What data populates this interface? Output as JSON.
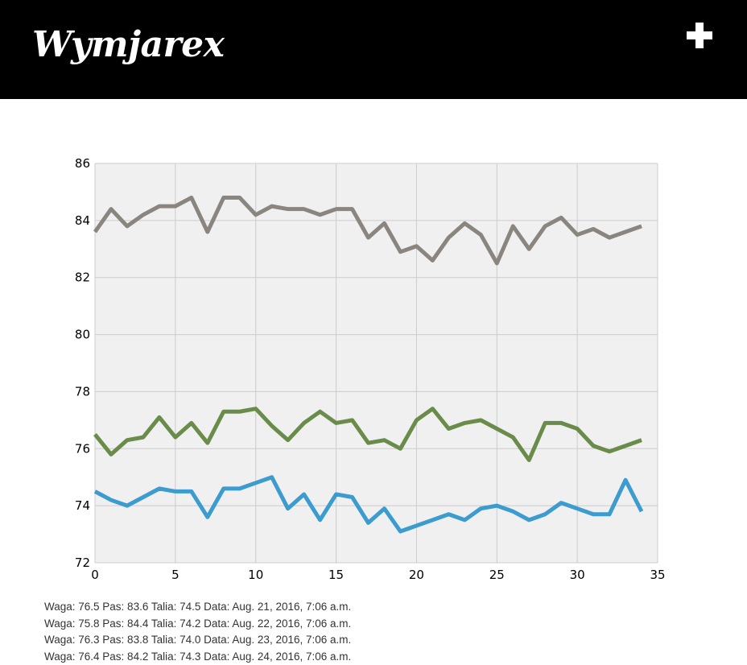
{
  "header": {
    "brand": "Wymjarex",
    "add_icon": "plus-icon",
    "background": "#000000"
  },
  "chart_data": {
    "type": "line",
    "title": "",
    "xlabel": "",
    "ylabel": "",
    "xlim": [
      0,
      35
    ],
    "ylim": [
      72,
      86
    ],
    "x_ticks": [
      "0",
      "5",
      "10",
      "15",
      "20",
      "25",
      "30",
      "35"
    ],
    "y_ticks": [
      "72",
      "74",
      "76",
      "78",
      "80",
      "82",
      "84",
      "86"
    ],
    "grid": true,
    "background": "#f0f0f0",
    "series": [
      {
        "color": "#8b8580",
        "values": [
          83.6,
          84.4,
          83.8,
          84.2,
          84.5,
          84.5,
          84.8,
          83.6,
          84.8,
          84.8,
          84.2,
          84.5,
          84.4,
          84.4,
          84.2,
          84.4,
          84.4,
          83.4,
          83.9,
          82.9,
          83.1,
          82.6,
          83.4,
          83.9,
          83.5,
          82.5,
          83.8,
          83.0,
          83.8,
          84.1,
          83.5,
          83.7,
          83.4,
          83.6,
          83.8
        ]
      },
      {
        "color": "#6a8c4a",
        "values": [
          76.5,
          75.8,
          76.3,
          76.4,
          77.1,
          76.4,
          76.9,
          76.2,
          77.3,
          77.3,
          77.4,
          76.8,
          76.3,
          76.9,
          77.3,
          76.9,
          77.0,
          76.2,
          76.3,
          76.0,
          77.0,
          77.4,
          76.7,
          76.9,
          77.0,
          76.7,
          76.4,
          75.6,
          76.9,
          76.9,
          76.7,
          76.1,
          75.9,
          76.1,
          76.3
        ]
      },
      {
        "color": "#3c9bcf",
        "values": [
          74.5,
          74.2,
          74.0,
          74.3,
          74.6,
          74.5,
          74.5,
          73.6,
          74.6,
          74.6,
          74.8,
          75.0,
          73.9,
          74.4,
          73.5,
          74.4,
          74.3,
          73.4,
          73.9,
          73.1,
          73.3,
          73.5,
          73.7,
          73.5,
          73.9,
          74.0,
          73.8,
          73.5,
          73.7,
          74.1,
          73.9,
          73.7,
          73.7,
          74.9,
          73.8
        ]
      }
    ]
  },
  "entries": [
    "Waga: 76.5 Pas: 83.6 Talia: 74.5 Data: Aug. 21, 2016, 7:06 a.m.",
    "Waga: 75.8 Pas: 84.4 Talia: 74.2 Data: Aug. 22, 2016, 7:06 a.m.",
    "Waga: 76.3 Pas: 83.8 Talia: 74.0 Data: Aug. 23, 2016, 7:06 a.m.",
    "Waga: 76.4 Pas: 84.2 Talia: 74.3 Data: Aug. 24, 2016, 7:06 a.m."
  ]
}
